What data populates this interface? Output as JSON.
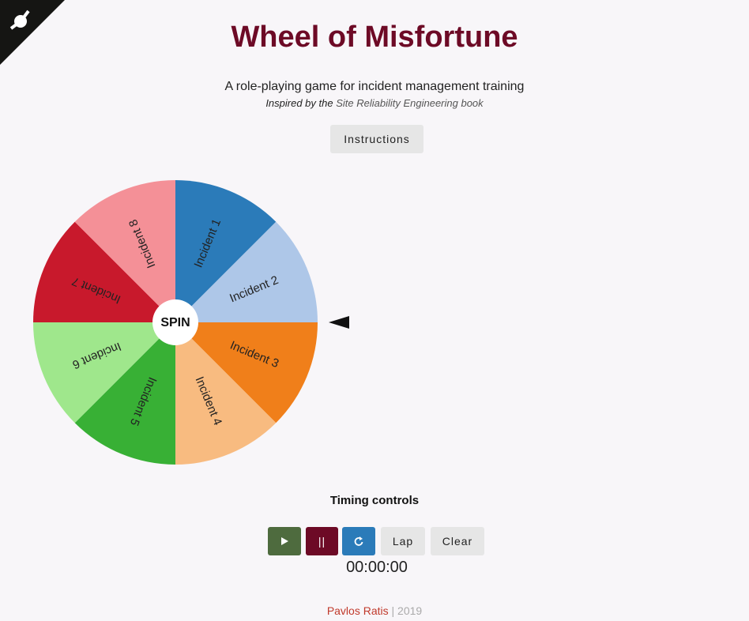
{
  "header": {
    "title": "Wheel of Misfortune",
    "subtitle": "A role-playing game for incident management training",
    "inspired_prefix": "Inspired by the",
    "inspired_link": "Site Reliability Engineering book"
  },
  "instructions_button": "Instructions",
  "wheel": {
    "spin_label": "SPIN",
    "segments": [
      {
        "label": "Incident 1",
        "color": "#2b7bb9"
      },
      {
        "label": "Incident 2",
        "color": "#aec7e8"
      },
      {
        "label": "Incident 3",
        "color": "#f07f1a"
      },
      {
        "label": "Incident 4",
        "color": "#f8bb80"
      },
      {
        "label": "Incident 5",
        "color": "#38b035"
      },
      {
        "label": "Incident 6",
        "color": "#9fe78c"
      },
      {
        "label": "Incident 7",
        "color": "#c8192c"
      },
      {
        "label": "Incident 8",
        "color": "#f49097"
      }
    ]
  },
  "timing": {
    "title": "Timing controls",
    "pause_label": "||",
    "lap_label": "Lap",
    "clear_label": "Clear",
    "timer": "00:00:00"
  },
  "footer": {
    "author": "Pavlos Ratis",
    "year": "| 2019"
  }
}
